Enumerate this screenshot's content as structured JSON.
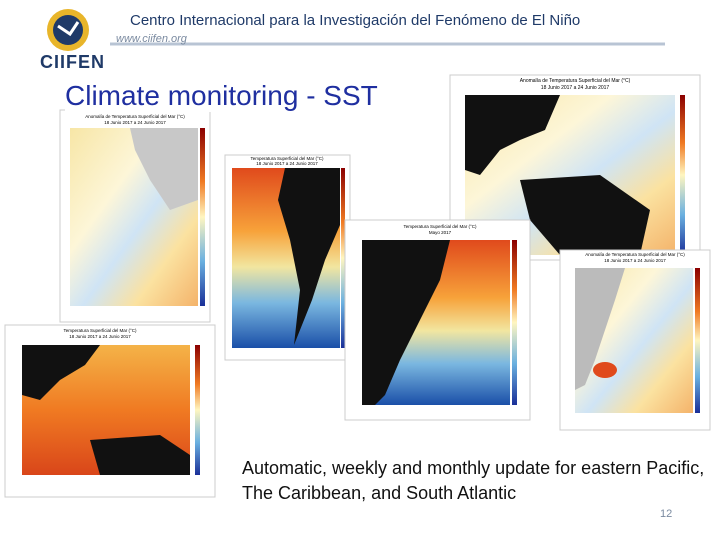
{
  "header": {
    "organization": "Centro Internacional para la Investigación del Fenómeno de El Niño",
    "website": "www.ciifen.org",
    "logo_text": "CIIFEN"
  },
  "slide": {
    "title": "Climate monitoring - SST",
    "caption": "Automatic, weekly and monthly update for eastern Pacific, The Caribbean, and South Atlantic",
    "page_number": "12"
  },
  "maps": [
    {
      "title": "Anomalía de Temperatura Superficial del Mar (°C)",
      "period": "18 Junio 2017 a 24 Junio 2017"
    },
    {
      "title": "Temperatura Superficial del Mar (°C)",
      "period": "18 Junio 2017 a 24 Junio 2017"
    },
    {
      "title": "Anomalía de Temperatura Superficial del Mar (°C)",
      "period": "18 Junio 2017 a 24 Junio 2017"
    },
    {
      "title": "Temperatura Superficial del Mar (°C)",
      "period": "18 Junio 2017 a 24 Junio 2017"
    },
    {
      "title": "Temperatura Superficial del Mar (°C)",
      "period": "Mayo 2017"
    },
    {
      "title": "Anomalía de Temperatura Superficial del Mar (°C)",
      "period": "18 Junio 2017 a 24 Junio 2017"
    }
  ]
}
